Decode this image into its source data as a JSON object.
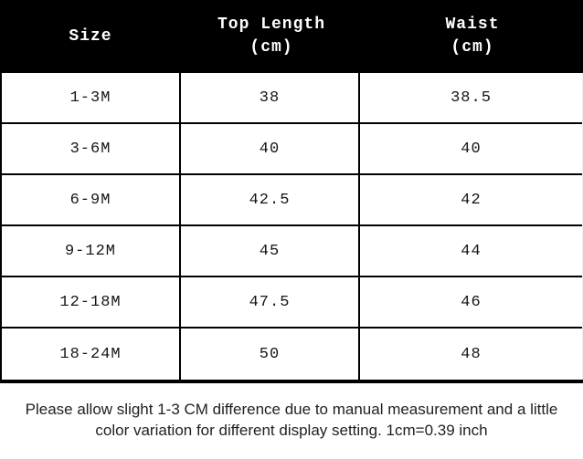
{
  "table": {
    "headers": [
      {
        "line1": "Size",
        "line2": ""
      },
      {
        "line1": "Top Length",
        "line2": "(cm)"
      },
      {
        "line1": "Waist",
        "line2": "(cm)"
      }
    ],
    "rows": [
      {
        "size": "1-3M",
        "top_length": "38",
        "waist": "38.5"
      },
      {
        "size": "3-6M",
        "top_length": "40",
        "waist": "40"
      },
      {
        "size": "6-9M",
        "top_length": "42.5",
        "waist": "42"
      },
      {
        "size": "9-12M",
        "top_length": "45",
        "waist": "44"
      },
      {
        "size": "12-18M",
        "top_length": "47.5",
        "waist": "46"
      },
      {
        "size": "18-24M",
        "top_length": "50",
        "waist": "48"
      }
    ]
  },
  "footer": {
    "note": "Please allow slight 1-3 CM difference due to manual measurement and a little color variation for different display setting. 1cm=0.39 inch"
  },
  "colors": {
    "header_bg": "#000000",
    "header_text": "#ffffff",
    "grid_line": "#000000",
    "body_text": "#151515",
    "note_text": "#212121",
    "background": "#ffffff"
  },
  "chart_data": {
    "type": "table",
    "columns": [
      "Size",
      "Top Length (cm)",
      "Waist (cm)"
    ],
    "rows": [
      [
        "1-3M",
        38,
        38.5
      ],
      [
        "3-6M",
        40,
        40
      ],
      [
        "6-9M",
        42.5,
        42
      ],
      [
        "9-12M",
        45,
        44
      ],
      [
        "12-18M",
        47.5,
        46
      ],
      [
        "18-24M",
        50,
        48
      ]
    ],
    "note": "Please allow slight 1-3 CM difference due to manual measurement and a little color variation for different display setting. 1cm=0.39 inch",
    "layout": {
      "header_style": "inverted-black",
      "grid": true,
      "note_position": "below-table"
    }
  }
}
